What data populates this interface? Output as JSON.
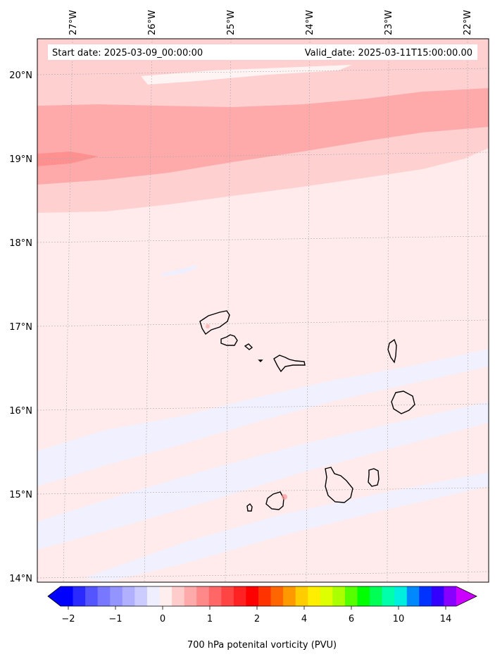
{
  "map": {
    "start_date": "Start date: 2025-03-09_00:00:00",
    "valid_date": "Valid_date: 2025-03-11T15:00:00.00",
    "lon_labels": [
      "27°W",
      "26°W",
      "25°W",
      "24°W",
      "23°W",
      "22°W"
    ],
    "lat_labels": [
      "20°N",
      "19°N",
      "18°N",
      "17°N",
      "16°N",
      "15°N",
      "14°N"
    ],
    "islands": [
      "Santo Antão",
      "São Vicente",
      "Santa Luzia",
      "Branco",
      "São Nicolau",
      "Sal",
      "Boa Vista",
      "Santiago",
      "Maio",
      "Fogo",
      "Brava"
    ]
  },
  "colorbar": {
    "ticks": [
      "−2",
      "−1",
      "0",
      "1",
      "2",
      "4",
      "6",
      "10",
      "14"
    ],
    "label": "700 hPa potenital vorticity (PVU)",
    "colors": [
      "#0000ff",
      "#2a2aff",
      "#5555ff",
      "#7777ff",
      "#9494ff",
      "#b0b0ff",
      "#ccccff",
      "#eeeeff",
      "#ffeeee",
      "#ffcccc",
      "#ffaaaa",
      "#ff8888",
      "#ff6666",
      "#ff4444",
      "#ff2222",
      "#ff0000",
      "#ff3300",
      "#ff6600",
      "#ff9900",
      "#ffcc00",
      "#ffee00",
      "#ddff00",
      "#aaff00",
      "#55ff00",
      "#00ff00",
      "#00ff55",
      "#00ffaa",
      "#00eedd",
      "#0088ff",
      "#0033ff",
      "#3300ff",
      "#8800ff"
    ],
    "under_color": "#0000ff",
    "over_color": "#cc00ff"
  }
}
